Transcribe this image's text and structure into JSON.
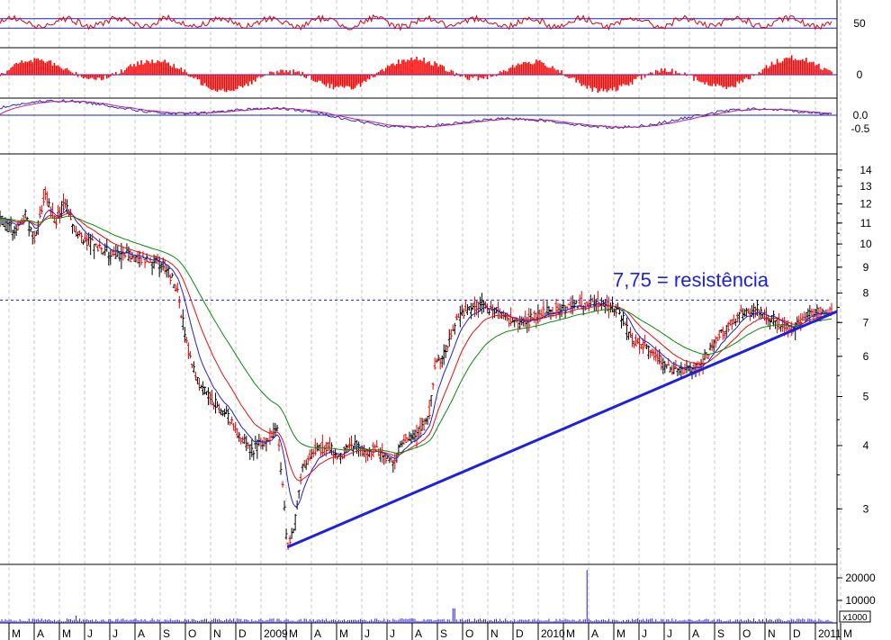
{
  "chart_data": {
    "type": "line",
    "title": "",
    "price_scale": "log",
    "price_ticks": [
      3,
      4,
      5,
      6,
      7,
      8,
      9,
      10,
      11,
      12,
      13,
      14
    ],
    "price_ylim": [
      2.35,
      15.0
    ],
    "indicator1": {
      "ticks": [
        "50"
      ],
      "ylim": [
        0,
        100
      ],
      "levels": [
        40,
        60
      ]
    },
    "indicator2": {
      "ticks": [
        "0"
      ]
    },
    "indicator3": {
      "ticks": [
        "0.0",
        "-0.5"
      ]
    },
    "volume": {
      "unit_label": "x1000",
      "ticks": [
        "20000",
        "10000"
      ],
      "ylim": [
        0,
        26000
      ]
    },
    "x_labels": [
      "M",
      "A",
      "M",
      "J",
      "J",
      "A",
      "S",
      "O",
      "N",
      "D",
      "2009",
      "M",
      "A",
      "M",
      "J",
      "J",
      "A",
      "S",
      "O",
      "N",
      "D",
      "2010",
      "M",
      "A",
      "M",
      "J",
      "J",
      "A",
      "S",
      "O",
      "N",
      "D",
      "2011",
      "M"
    ],
    "annotation": {
      "text": "7,75 = resistência",
      "level": 7.75
    },
    "price_series": [
      {
        "x": 0,
        "y": 11.2
      },
      {
        "x": 0.6,
        "y": 10.6
      },
      {
        "x": 1.0,
        "y": 11.4
      },
      {
        "x": 1.4,
        "y": 10.2
      },
      {
        "x": 1.8,
        "y": 12.6
      },
      {
        "x": 2.2,
        "y": 11.0
      },
      {
        "x": 2.6,
        "y": 12.2
      },
      {
        "x": 3.0,
        "y": 10.6
      },
      {
        "x": 3.6,
        "y": 10.0
      },
      {
        "x": 4.4,
        "y": 9.6
      },
      {
        "x": 5.2,
        "y": 9.4
      },
      {
        "x": 6.0,
        "y": 9.3
      },
      {
        "x": 6.6,
        "y": 9.0
      },
      {
        "x": 7.0,
        "y": 8.2
      },
      {
        "x": 7.3,
        "y": 6.8
      },
      {
        "x": 7.6,
        "y": 5.8
      },
      {
        "x": 8.0,
        "y": 5.2
      },
      {
        "x": 8.6,
        "y": 4.8
      },
      {
        "x": 9.0,
        "y": 4.6
      },
      {
        "x": 9.5,
        "y": 4.2
      },
      {
        "x": 10.0,
        "y": 3.9
      },
      {
        "x": 10.5,
        "y": 4.1
      },
      {
        "x": 11.0,
        "y": 4.3
      },
      {
        "x": 11.2,
        "y": 3.4
      },
      {
        "x": 11.4,
        "y": 2.5
      },
      {
        "x": 11.7,
        "y": 2.8
      },
      {
        "x": 12.0,
        "y": 3.6
      },
      {
        "x": 12.5,
        "y": 3.9
      },
      {
        "x": 13.0,
        "y": 4.0
      },
      {
        "x": 13.5,
        "y": 3.8
      },
      {
        "x": 14.0,
        "y": 4.0
      },
      {
        "x": 14.5,
        "y": 3.9
      },
      {
        "x": 15.0,
        "y": 3.9
      },
      {
        "x": 15.6,
        "y": 3.7
      },
      {
        "x": 16.0,
        "y": 4.1
      },
      {
        "x": 16.5,
        "y": 4.2
      },
      {
        "x": 17.0,
        "y": 4.5
      },
      {
        "x": 17.3,
        "y": 5.8
      },
      {
        "x": 17.6,
        "y": 6.0
      },
      {
        "x": 18.0,
        "y": 6.9
      },
      {
        "x": 18.5,
        "y": 7.4
      },
      {
        "x": 19.0,
        "y": 7.6
      },
      {
        "x": 19.5,
        "y": 7.4
      },
      {
        "x": 20.0,
        "y": 7.2
      },
      {
        "x": 20.5,
        "y": 7.0
      },
      {
        "x": 21.0,
        "y": 7.1
      },
      {
        "x": 21.5,
        "y": 7.3
      },
      {
        "x": 22.0,
        "y": 7.4
      },
      {
        "x": 22.5,
        "y": 7.5
      },
      {
        "x": 23.0,
        "y": 7.6
      },
      {
        "x": 23.5,
        "y": 7.7
      },
      {
        "x": 24.0,
        "y": 7.6
      },
      {
        "x": 24.5,
        "y": 7.4
      },
      {
        "x": 25.0,
        "y": 6.6
      },
      {
        "x": 25.5,
        "y": 6.3
      },
      {
        "x": 26.0,
        "y": 6.0
      },
      {
        "x": 26.5,
        "y": 5.7
      },
      {
        "x": 27.0,
        "y": 5.6
      },
      {
        "x": 27.5,
        "y": 5.7
      },
      {
        "x": 28.0,
        "y": 6.0
      },
      {
        "x": 28.5,
        "y": 6.5
      },
      {
        "x": 29.0,
        "y": 7.0
      },
      {
        "x": 29.5,
        "y": 7.3
      },
      {
        "x": 30.0,
        "y": 7.4
      },
      {
        "x": 30.5,
        "y": 7.2
      },
      {
        "x": 31.0,
        "y": 6.9
      },
      {
        "x": 31.5,
        "y": 6.8
      },
      {
        "x": 32.0,
        "y": 7.2
      },
      {
        "x": 32.5,
        "y": 7.4
      },
      {
        "x": 33.0,
        "y": 7.3
      }
    ],
    "trendline": [
      {
        "x": 11.4,
        "y": 2.52
      },
      {
        "x": 33.0,
        "y": 7.3
      }
    ]
  }
}
